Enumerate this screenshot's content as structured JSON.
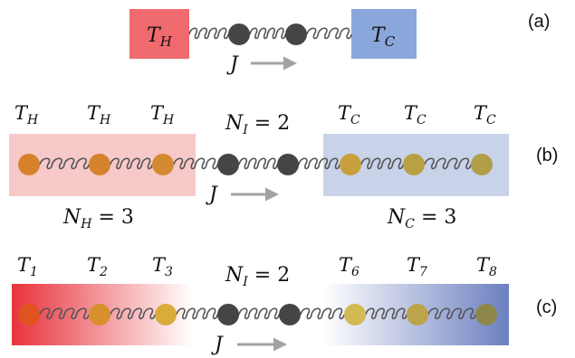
{
  "panel_a": {
    "label": "(a)",
    "left_box": {
      "text": "T",
      "sub": "H",
      "color": "#ef6b6e"
    },
    "right_box": {
      "text": "T",
      "sub": "C",
      "color": "#8aa7dc"
    },
    "flux": "J"
  },
  "panel_b": {
    "label": "(b)",
    "hot_temps": [
      {
        "text": "T",
        "sub": "H"
      },
      {
        "text": "T",
        "sub": "H"
      },
      {
        "text": "T",
        "sub": "H"
      }
    ],
    "cold_temps": [
      {
        "text": "T",
        "sub": "C"
      },
      {
        "text": "T",
        "sub": "C"
      },
      {
        "text": "T",
        "sub": "C"
      }
    ],
    "ni": {
      "text": "N",
      "sub": "I",
      "rest": " = 2"
    },
    "nh": {
      "text": "N",
      "sub": "H",
      "rest": " = 3"
    },
    "nc": {
      "text": "N",
      "sub": "C",
      "rest": " = 3"
    },
    "flux": "J",
    "hot_color": "#f7c9c9",
    "cold_color": "#c8d3ea"
  },
  "panel_c": {
    "label": "(c)",
    "temps": [
      {
        "text": "T",
        "sub": "1"
      },
      {
        "text": "T",
        "sub": "2"
      },
      {
        "text": "T",
        "sub": "3"
      },
      {
        "text": "T",
        "sub": "6"
      },
      {
        "text": "T",
        "sub": "7"
      },
      {
        "text": "T",
        "sub": "8"
      }
    ],
    "ni": {
      "text": "N",
      "sub": "I",
      "rest": " = 2"
    },
    "flux": "J",
    "hot_color": "#e8323c",
    "cold_color": "#6c80c0"
  },
  "colors": {
    "interface_atom": "#454545",
    "hot_atom": "#d27a2a",
    "spring": "#555555",
    "arrow": "#a3a3a3"
  }
}
